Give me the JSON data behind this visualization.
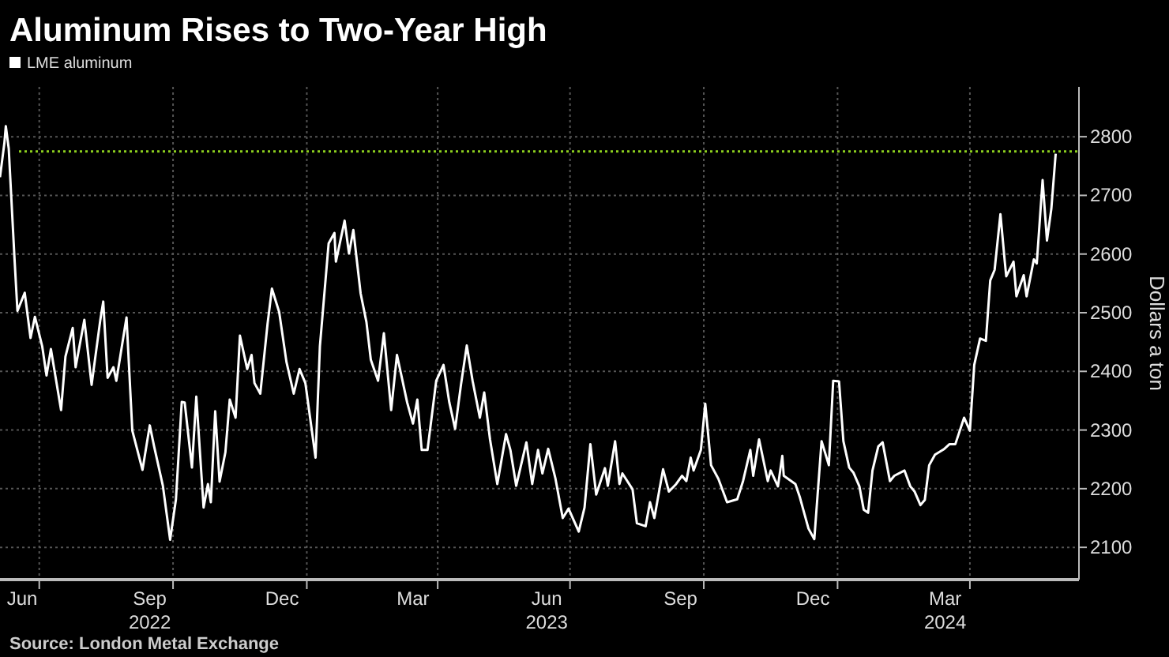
{
  "chart_data": {
    "type": "line",
    "title": "Aluminum Rises to Two-Year High",
    "ylabel": "Dollars a ton",
    "annotations": [
      "Source: London Metal Exchange"
    ],
    "legend": "top left",
    "grid": true,
    "line_style": "solid",
    "xlim": [
      "2022-06-04",
      "2024-06-15"
    ],
    "ylim": [
      2045,
      2885
    ],
    "yticks": [
      2100,
      2200,
      2300,
      2400,
      2500,
      2600,
      2700,
      2800
    ],
    "xticks": [
      {
        "value": "2022-07-01",
        "label": null
      },
      {
        "value": "2022-10-01",
        "label": null
      },
      {
        "value": "2023-01-01",
        "label": null
      },
      {
        "value": "2023-04-01",
        "label": null
      },
      {
        "value": "2023-07-01",
        "label": null
      },
      {
        "value": "2023-10-01",
        "label": null
      },
      {
        "value": "2024-01-01",
        "label": null
      },
      {
        "value": "2024-04-01",
        "label": null
      },
      {
        "value": "2022-06-15",
        "label": "Jun"
      },
      {
        "value": "2022-09-15",
        "label": "Sep\n2022"
      },
      {
        "value": "2022-12-15",
        "label": "Dec"
      },
      {
        "value": "2023-03-15",
        "label": "Mar"
      },
      {
        "value": "2023-06-15",
        "label": "Jun\n2023"
      },
      {
        "value": "2023-09-15",
        "label": "Sep"
      },
      {
        "value": "2023-12-15",
        "label": "Dec"
      },
      {
        "value": "2024-03-15",
        "label": "Mar\n2024"
      }
    ],
    "ref_lines": [
      {
        "axis": "y",
        "value": 2775,
        "label": null,
        "color": "#8ccf1e",
        "line_style": "dotted"
      }
    ],
    "series": [
      {
        "name": "LME aluminum",
        "color": "#ffffff",
        "x": [
          "2022-06-04",
          "2022-06-07",
          "2022-06-08",
          "2022-06-10",
          "2022-06-14",
          "2022-06-16",
          "2022-06-21",
          "2022-06-25",
          "2022-06-28",
          "2022-07-03",
          "2022-07-06",
          "2022-07-09",
          "2022-07-16",
          "2022-07-19",
          "2022-07-24",
          "2022-07-26",
          "2022-08-01",
          "2022-08-06",
          "2022-08-12",
          "2022-08-14",
          "2022-08-17",
          "2022-08-21",
          "2022-08-23",
          "2022-08-30",
          "2022-09-03",
          "2022-09-10",
          "2022-09-15",
          "2022-09-18",
          "2022-09-24",
          "2022-09-29",
          "2022-10-03",
          "2022-10-07",
          "2022-10-09",
          "2022-10-14",
          "2022-10-17",
          "2022-10-22",
          "2022-10-25",
          "2022-10-27",
          "2022-10-30",
          "2022-11-02",
          "2022-11-06",
          "2022-11-09",
          "2022-11-13",
          "2022-11-16",
          "2022-11-21",
          "2022-11-24",
          "2022-11-26",
          "2022-11-30",
          "2022-12-05",
          "2022-12-08",
          "2022-12-13",
          "2022-12-18",
          "2022-12-23",
          "2022-12-27",
          "2022-12-31",
          "2023-01-07",
          "2023-01-10",
          "2023-01-16",
          "2023-01-20",
          "2023-01-21",
          "2023-01-27",
          "2023-01-30",
          "2023-02-02",
          "2023-02-07",
          "2023-02-11",
          "2023-02-14",
          "2023-02-19",
          "2023-02-23",
          "2023-02-28",
          "2023-03-04",
          "2023-03-11",
          "2023-03-15",
          "2023-03-18",
          "2023-03-21",
          "2023-03-25",
          "2023-03-31",
          "2023-04-05",
          "2023-04-09",
          "2023-04-13",
          "2023-04-17",
          "2023-04-21",
          "2023-04-25",
          "2023-04-30",
          "2023-05-03",
          "2023-05-07",
          "2023-05-12",
          "2023-05-18",
          "2023-05-21",
          "2023-05-25",
          "2023-06-01",
          "2023-06-05",
          "2023-06-09",
          "2023-06-12",
          "2023-06-16",
          "2023-06-21",
          "2023-06-26",
          "2023-06-30",
          "2023-07-07",
          "2023-07-11",
          "2023-07-15",
          "2023-07-19",
          "2023-07-25",
          "2023-07-27",
          "2023-08-01",
          "2023-08-04",
          "2023-08-06",
          "2023-08-13",
          "2023-08-16",
          "2023-08-22",
          "2023-08-25",
          "2023-08-28",
          "2023-09-03",
          "2023-09-07",
          "2023-09-12",
          "2023-09-16",
          "2023-09-19",
          "2023-09-22",
          "2023-09-24",
          "2023-09-29",
          "2023-10-02",
          "2023-10-06",
          "2023-10-11",
          "2023-10-17",
          "2023-10-24",
          "2023-10-28",
          "2023-11-02",
          "2023-11-04",
          "2023-11-08",
          "2023-11-14",
          "2023-11-16",
          "2023-11-21",
          "2023-11-24",
          "2023-11-25",
          "2023-12-03",
          "2023-12-06",
          "2023-12-12",
          "2023-12-16",
          "2023-12-21",
          "2023-12-26",
          "2023-12-29",
          "2024-01-02",
          "2024-01-05",
          "2024-01-09",
          "2024-01-12",
          "2024-01-16",
          "2024-01-19",
          "2024-01-22",
          "2024-01-25",
          "2024-01-29",
          "2024-02-01",
          "2024-02-06",
          "2024-02-09",
          "2024-02-16",
          "2024-02-20",
          "2024-02-23",
          "2024-02-27",
          "2024-03-01",
          "2024-03-04",
          "2024-03-08",
          "2024-03-14",
          "2024-03-18",
          "2024-03-22",
          "2024-03-28",
          "2024-04-01",
          "2024-04-04",
          "2024-04-08",
          "2024-04-12",
          "2024-04-15",
          "2024-04-18",
          "2024-04-22",
          "2024-04-25",
          "2024-04-26",
          "2024-05-01",
          "2024-05-03",
          "2024-05-08",
          "2024-05-10",
          "2024-05-15",
          "2024-05-17",
          "2024-05-21",
          "2024-05-24",
          "2024-05-27",
          "2024-05-30"
        ],
        "values": [
          2731,
          2789,
          2818,
          2780,
          2591,
          2503,
          2534,
          2457,
          2493,
          2443,
          2393,
          2438,
          2334,
          2425,
          2474,
          2407,
          2488,
          2377,
          2488,
          2519,
          2389,
          2407,
          2384,
          2492,
          2299,
          2232,
          2308,
          2272,
          2205,
          2113,
          2182,
          2348,
          2347,
          2236,
          2357,
          2168,
          2208,
          2177,
          2332,
          2212,
          2262,
          2352,
          2321,
          2461,
          2404,
          2428,
          2380,
          2362,
          2481,
          2541,
          2501,
          2416,
          2362,
          2404,
          2380,
          2253,
          2443,
          2618,
          2636,
          2587,
          2657,
          2601,
          2641,
          2533,
          2484,
          2420,
          2384,
          2465,
          2334,
          2428,
          2347,
          2311,
          2352,
          2266,
          2266,
          2384,
          2411,
          2347,
          2302,
          2377,
          2444,
          2384,
          2321,
          2364,
          2284,
          2208,
          2293,
          2266,
          2205,
          2279,
          2208,
          2266,
          2226,
          2268,
          2217,
          2150,
          2166,
          2127,
          2168,
          2276,
          2190,
          2235,
          2205,
          2281,
          2208,
          2226,
          2199,
          2141,
          2136,
          2177,
          2150,
          2233,
          2195,
          2208,
          2222,
          2213,
          2253,
          2231,
          2266,
          2345,
          2240,
          2217,
          2177,
          2182,
          2213,
          2266,
          2222,
          2284,
          2213,
          2231,
          2204,
          2256,
          2222,
          2208,
          2186,
          2132,
          2114,
          2281,
          2240,
          2384,
          2383,
          2281,
          2236,
          2227,
          2204,
          2164,
          2159,
          2231,
          2272,
          2279,
          2213,
          2222,
          2231,
          2204,
          2195,
          2172,
          2181,
          2240,
          2258,
          2267,
          2276,
          2276,
          2321,
          2299,
          2411,
          2456,
          2452,
          2555,
          2573,
          2668,
          2587,
          2562,
          2587,
          2528,
          2564,
          2528,
          2591,
          2584,
          2726,
          2623,
          2677,
          2771
        ]
      }
    ]
  }
}
